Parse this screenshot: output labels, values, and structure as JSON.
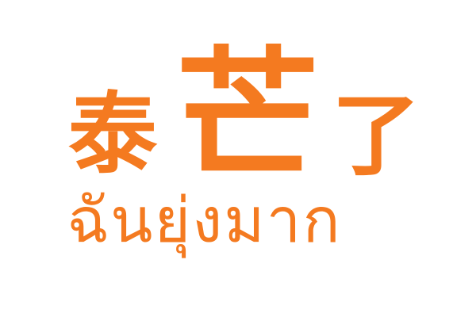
{
  "logo": {
    "chinese": {
      "char1": "泰",
      "char2": "芒",
      "char3": "了"
    },
    "thai": "ฉันยุ่งมาก",
    "colors": {
      "text": "#f47a20",
      "background": "#ffffff"
    }
  }
}
